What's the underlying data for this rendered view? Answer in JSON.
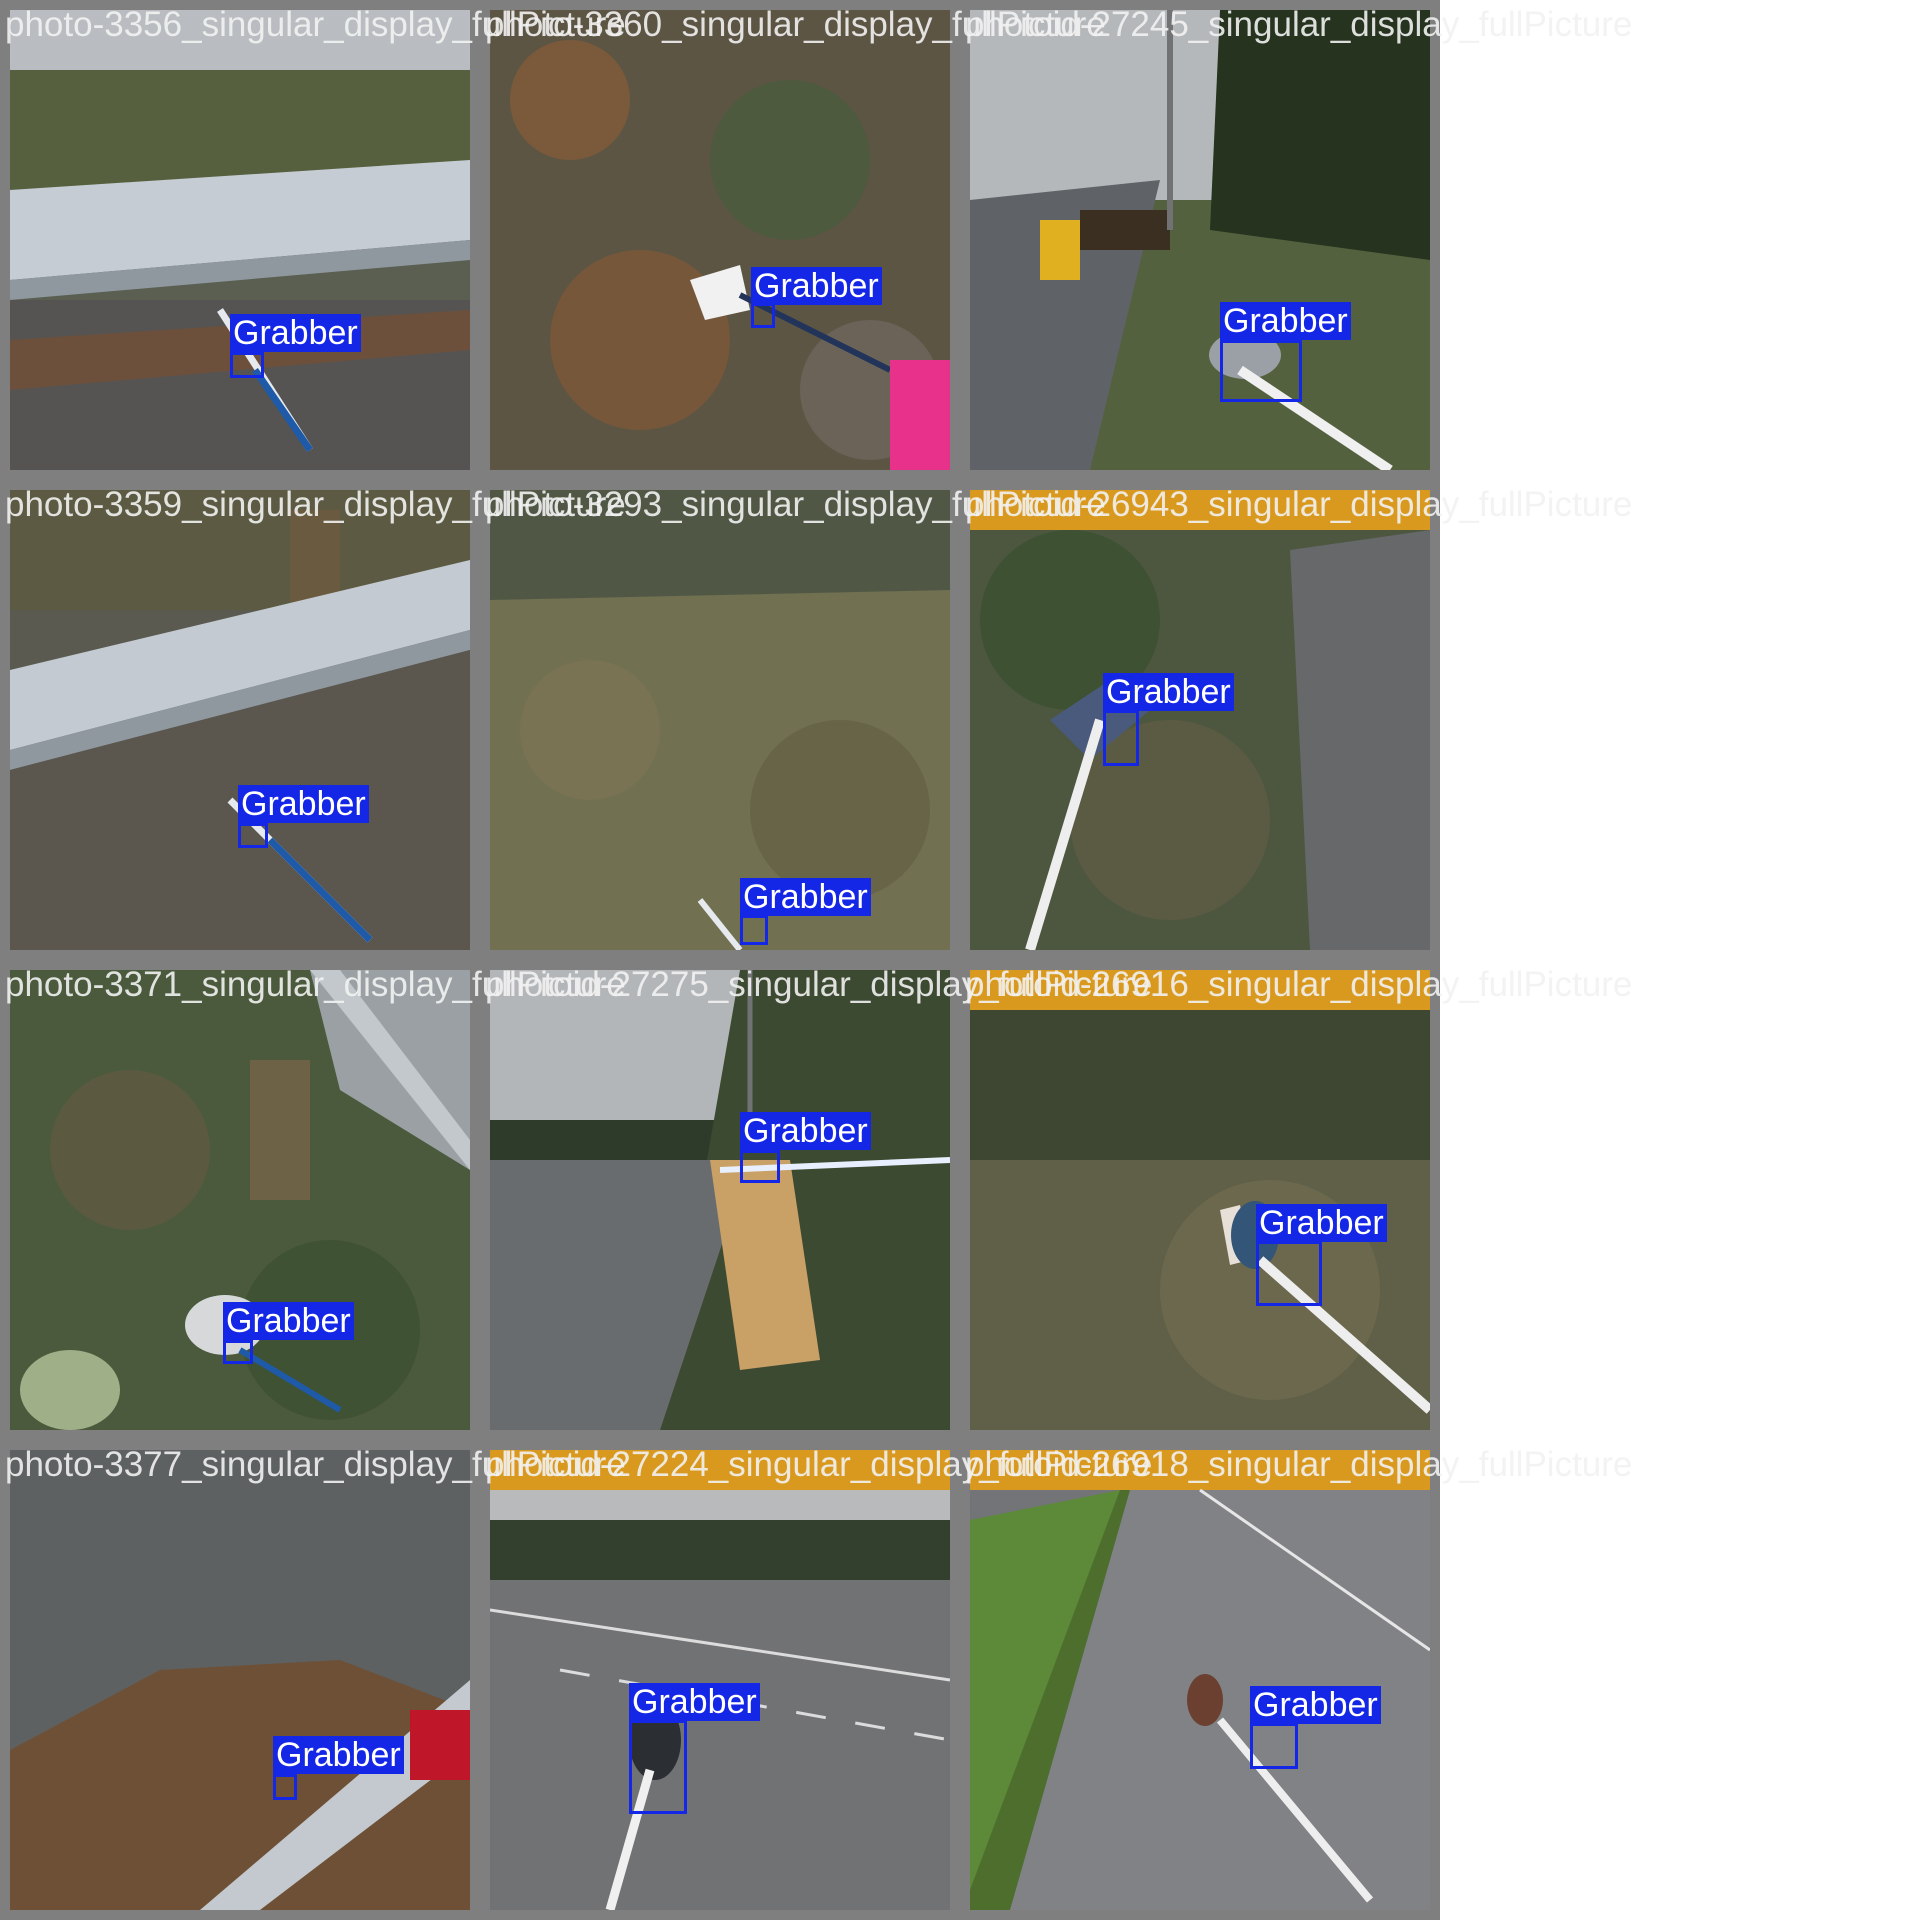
{
  "class_label": "Grabber",
  "colors": {
    "box": "#1426e6",
    "label_text": "#ffffff",
    "tile_border": "#7f7f7f"
  },
  "tiles": [
    {
      "caption": "photo-3356_singular_display_fullPicture",
      "scene": "guardrail"
    },
    {
      "caption": "photo-3360_singular_display_fullPicture",
      "scene": "leaves"
    },
    {
      "caption": "photoid-27245_singular_display_fullPicture",
      "scene": "highway-shoulder"
    },
    {
      "caption": "photo-3359_singular_display_fullPicture",
      "scene": "guardrail"
    },
    {
      "caption": "photo-3293_singular_display_fullPicture",
      "scene": "grass"
    },
    {
      "caption": "photoid-26943_singular_display_fullPicture",
      "scene": "brush"
    },
    {
      "caption": "photo-3371_singular_display_fullPicture",
      "scene": "brush-post"
    },
    {
      "caption": "photoid-27275_singular_display_fullPicture",
      "scene": "highway-bag"
    },
    {
      "caption": "photoid-26916_singular_display_fullPicture",
      "scene": "brush"
    },
    {
      "caption": "photo-3377_singular_display_fullPicture",
      "scene": "wet-road"
    },
    {
      "caption": "photoid-27224_singular_display_fullPicture",
      "scene": "highway-road"
    },
    {
      "caption": "photoid-26918_singular_display_fullPicture",
      "scene": "road-lane"
    }
  ]
}
